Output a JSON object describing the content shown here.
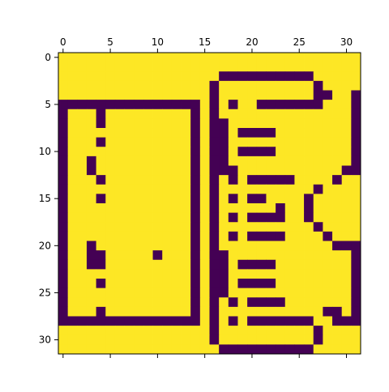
{
  "chart_data": {
    "type": "heatmap",
    "title": "",
    "xlabel": "",
    "ylabel": "",
    "grid": false,
    "colormap": "viridis",
    "colors": {
      "0": "#440154",
      "1": "#fde725"
    },
    "xaxis_position": "top",
    "x_ticks": [
      0,
      5,
      10,
      15,
      20,
      25,
      30
    ],
    "y_ticks": [
      0,
      5,
      10,
      15,
      20,
      25,
      30
    ],
    "x_tick_labels": [
      "0",
      "5",
      "10",
      "15",
      "20",
      "25",
      "30"
    ],
    "y_tick_labels": [
      "0",
      "5",
      "10",
      "15",
      "20",
      "25",
      "30"
    ],
    "xlim": [
      -0.5,
      31.5
    ],
    "ylim": [
      31.5,
      -0.5
    ],
    "rows": [
      "11111111111111111111111111111111",
      "11111111111111111111111111111111",
      "11111111111111111000000000011111",
      "11111111111111110111111111101111",
      "11111111111111110111111111100110",
      "00000000000000010101100000001110",
      "01110111111111010111111111111110",
      "01110111111111010011111111111110",
      "01111111111111010010000111111110",
      "01110111111111010011111111111110",
      "01111111111111010010000111111110",
      "01101111111111010011111111111110",
      "01101111111111010001111111111100",
      "01110111111111010101000001111011",
      "01111111111111010111111111101111",
      "01110111111111010101001111011111",
      "01111111111111010111111011011111",
      "01111111111111010101000011011111",
      "01111111111111010111111111101111",
      "01111111111111010101000011110111",
      "01101111111111010111111111111000",
      "01100111110111010011111111111110",
      "01100111111111010010000111111110",
      "01111111111111010011111111111110",
      "01110111111111010010000111111110",
      "01111111111111010011111111111110",
      "01111111111111010101000011111110",
      "01110111111111010111111111110010",
      "00000000000000010101000000011000",
      "11111111111111110111111111101111",
      "11111111111111110111111111101111",
      "11111111111111111000000000011111"
    ]
  }
}
